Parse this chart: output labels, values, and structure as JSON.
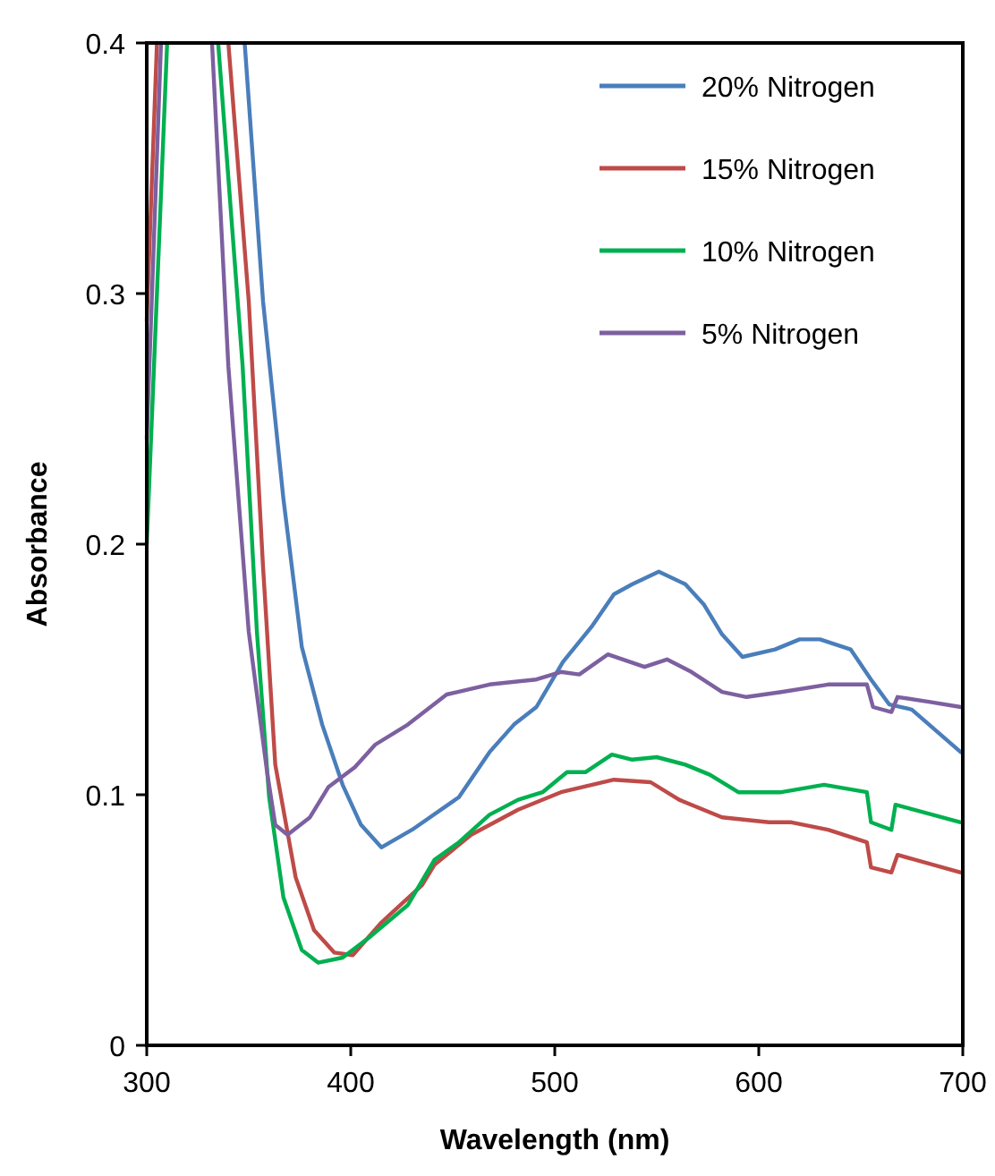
{
  "chart_data": {
    "type": "line",
    "xlabel": "Wavelength (nm)",
    "ylabel": "Absorbance",
    "xlim": [
      300,
      700
    ],
    "xticks": [
      300,
      400,
      500,
      600,
      700
    ],
    "ylim": [
      0,
      0.4
    ],
    "yticks": [
      0,
      0.1,
      0.2,
      0.3,
      0.4
    ],
    "grid": false,
    "legend": "top right",
    "marker": "none",
    "line_style": "solid",
    "series": [
      {
        "name": "20% Nitrogen",
        "color": "#4a7ebb",
        "x": [
          348,
          357,
          367,
          376,
          386,
          396,
          405,
          415,
          430,
          453,
          468,
          480,
          491,
          504,
          518,
          529,
          538,
          551,
          564,
          573,
          582,
          592,
          608,
          620,
          630,
          645,
          655,
          664,
          675,
          699
        ],
        "values": [
          0.4,
          0.297,
          0.218,
          0.159,
          0.128,
          0.104,
          0.088,
          0.079,
          0.086,
          0.099,
          0.117,
          0.128,
          0.135,
          0.153,
          0.167,
          0.18,
          0.184,
          0.189,
          0.184,
          0.176,
          0.164,
          0.155,
          0.158,
          0.162,
          0.162,
          0.158,
          0.146,
          0.136,
          0.134,
          0.117
        ]
      },
      {
        "name": "15% Nitrogen",
        "color": "#be4b48",
        "x": [
          300,
          305,
          320,
          340,
          350,
          357,
          363,
          373,
          382,
          392,
          401,
          415,
          435,
          441,
          459,
          482,
          503,
          529,
          547,
          561,
          582,
          605,
          616,
          634,
          653,
          655,
          665,
          668,
          699
        ],
        "values": [
          0.289,
          0.4,
          null,
          0.4,
          0.297,
          0.191,
          0.112,
          0.067,
          0.046,
          0.037,
          0.036,
          0.049,
          0.064,
          0.072,
          0.084,
          0.094,
          0.101,
          0.106,
          0.105,
          0.098,
          0.091,
          0.089,
          0.089,
          0.086,
          0.081,
          0.071,
          0.069,
          0.076,
          0.069
        ]
      },
      {
        "name": "10% Nitrogen",
        "color": "#00b050",
        "x": [
          300,
          310,
          320,
          335,
          347,
          354,
          360,
          367,
          376,
          384,
          396,
          409,
          428,
          441,
          453,
          468,
          482,
          494,
          506,
          515,
          528,
          538,
          550,
          564,
          576,
          590,
          611,
          632,
          653,
          655,
          665,
          667,
          699
        ],
        "values": [
          0.2,
          0.4,
          null,
          0.4,
          0.271,
          0.165,
          0.099,
          0.059,
          0.038,
          0.033,
          0.035,
          0.043,
          0.056,
          0.074,
          0.081,
          0.092,
          0.098,
          0.101,
          0.109,
          0.109,
          0.116,
          0.114,
          0.115,
          0.112,
          0.108,
          0.101,
          0.101,
          0.104,
          0.101,
          0.089,
          0.086,
          0.096,
          0.089
        ]
      },
      {
        "name": "5% Nitrogen",
        "color": "#7d60a0",
        "x": [
          300,
          307,
          320,
          332,
          340,
          350,
          359,
          363,
          369,
          380,
          389,
          402,
          412,
          428,
          447,
          468,
          491,
          503,
          512,
          526,
          544,
          555,
          567,
          582,
          594,
          611,
          634,
          653,
          656,
          665,
          668,
          684,
          699
        ],
        "values": [
          0.242,
          0.4,
          null,
          0.4,
          0.271,
          0.165,
          0.109,
          0.088,
          0.084,
          0.091,
          0.103,
          0.111,
          0.12,
          0.128,
          0.14,
          0.144,
          0.146,
          0.149,
          0.148,
          0.156,
          0.151,
          0.154,
          0.149,
          0.141,
          0.139,
          0.141,
          0.144,
          0.144,
          0.135,
          0.133,
          0.139,
          0.137,
          0.135
        ]
      }
    ]
  }
}
